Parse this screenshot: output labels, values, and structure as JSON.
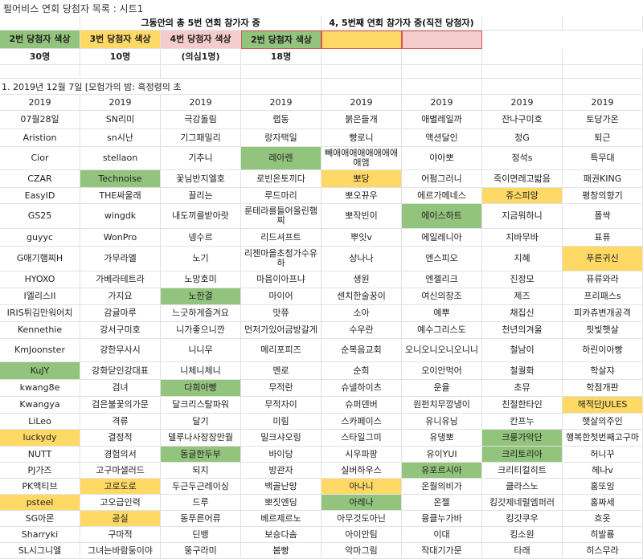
{
  "title": "펄어비스 연회 당첨자 목록 : 시트1",
  "colors": {
    "green": "#93c47d",
    "yellow": "#ffd966",
    "pink": "#f4cccc",
    "border": "#e2e2e2",
    "highlight_border": "#d9534f"
  },
  "header": {
    "left_group_title": "그동안의 총 5번 연회 참가자 중",
    "right_group_title": "4, 5번째 연회 참가자 중(직전 당첨자)",
    "legend": [
      {
        "label": "2번 당첨자 색상",
        "color": "green",
        "count": "30명"
      },
      {
        "label": "3번 당첨자 색상",
        "color": "yellow",
        "count": "10명"
      },
      {
        "label": "4번 당첨자 색상",
        "color": "pink",
        "count": "(의심1명)"
      },
      {
        "label": "2번 당첨자 색상",
        "color": "green",
        "count": "18명"
      },
      {
        "label": "",
        "color": "yellow",
        "count": ""
      },
      {
        "label": "",
        "color": "pink",
        "count": ""
      }
    ]
  },
  "section_title": "1. 2019년 12월 7일 [모험가의 밤: 흑정령의 초",
  "table": {
    "header": [
      "2019",
      "2019",
      "2019",
      "2019",
      "2019",
      "2019",
      "2019",
      "2019"
    ],
    "rows": [
      [
        {
          "t": "07월28일"
        },
        {
          "t": "SN리미"
        },
        {
          "t": "극강돌림"
        },
        {
          "t": "랩동"
        },
        {
          "t": "붉은들개"
        },
        {
          "t": "애별레일까"
        },
        {
          "t": "잔나구미호"
        },
        {
          "t": "토당가온"
        }
      ],
      [
        {
          "t": "Aristion"
        },
        {
          "t": "sn시난"
        },
        {
          "t": "기그패밀리"
        },
        {
          "t": "랑자택일"
        },
        {
          "t": "빵로니"
        },
        {
          "t": "액션달인"
        },
        {
          "t": "정G"
        },
        {
          "t": "퇴근"
        }
      ],
      [
        {
          "t": "Cior"
        },
        {
          "t": "stellaon"
        },
        {
          "t": "기추니"
        },
        {
          "t": "레아렌",
          "c": "green"
        },
        {
          "t": "빼애애애애애애애애애앰"
        },
        {
          "t": "야아뽀"
        },
        {
          "t": "정석s"
        },
        {
          "t": "특무대"
        }
      ],
      [
        {
          "t": "CZAR"
        },
        {
          "t": "Technoise",
          "c": "green"
        },
        {
          "t": "꽃님반지엘호"
        },
        {
          "t": "로빈온토끼다"
        },
        {
          "t": "뽀당",
          "c": "yellow"
        },
        {
          "t": "어펌그러니"
        },
        {
          "t": "죽이면레고밟음"
        },
        {
          "t": "패권KING"
        }
      ],
      [
        {
          "t": "EasyID"
        },
        {
          "t": "THE싸울래"
        },
        {
          "t": "끌리는"
        },
        {
          "t": "루드마리"
        },
        {
          "t": "뽀오뀨우"
        },
        {
          "t": "에르가메네스"
        },
        {
          "t": "쥬스피앙",
          "c": "yellow"
        },
        {
          "t": "평창의향기"
        }
      ],
      [
        {
          "t": "GS25"
        },
        {
          "t": "wingdk"
        },
        {
          "t": "내도끼를받아랏"
        },
        {
          "t": "룬테라를들어올린햄찌"
        },
        {
          "t": "뽀작빈이"
        },
        {
          "t": "에이스하트",
          "c": "green"
        },
        {
          "t": "지금뭐하니"
        },
        {
          "t": "폴싹"
        }
      ],
      [
        {
          "t": "guyyc"
        },
        {
          "t": "WonPro"
        },
        {
          "t": "넹수르"
        },
        {
          "t": "리드셔프트"
        },
        {
          "t": "뿌잇v"
        },
        {
          "t": "에일레니아"
        },
        {
          "t": "지바무바"
        },
        {
          "t": "표퓨"
        }
      ],
      [
        {
          "t": "G애기햄찌H"
        },
        {
          "t": "가무라엘"
        },
        {
          "t": "노기"
        },
        {
          "t": "리젠마을초청가수유하"
        },
        {
          "t": "상나나"
        },
        {
          "t": "엔스피오"
        },
        {
          "t": "지혜"
        },
        {
          "t": "푸른귀신",
          "c": "yellow"
        }
      ],
      [
        {
          "t": "HYOXO"
        },
        {
          "t": "가베라테트라"
        },
        {
          "t": "노망호미"
        },
        {
          "t": "마음이아프냐"
        },
        {
          "t": "생원"
        },
        {
          "t": "엔젤리크"
        },
        {
          "t": "진정모"
        },
        {
          "t": "퓨류와라"
        }
      ],
      [
        {
          "t": "I엘리스II"
        },
        {
          "t": "가지요"
        },
        {
          "t": "노한결",
          "c": "green"
        },
        {
          "t": "마이어"
        },
        {
          "t": "센치한술꿍이"
        },
        {
          "t": "여신의창조"
        },
        {
          "t": "제즈"
        },
        {
          "t": "프리패스s"
        }
      ],
      [
        {
          "t": "IRIS튀김만워어치"
        },
        {
          "t": "감귤마루"
        },
        {
          "t": "느긋하게즐겨요"
        },
        {
          "t": "맛쮸"
        },
        {
          "t": "소아"
        },
        {
          "t": "예뿌"
        },
        {
          "t": "채집신"
        },
        {
          "t": "피카츄변개공격"
        }
      ],
      [
        {
          "t": "Kennethie"
        },
        {
          "t": "강서구미호"
        },
        {
          "t": "니가좋으니깐"
        },
        {
          "t": "먼저가있어금방갈게"
        },
        {
          "t": "수우란"
        },
        {
          "t": "예수그리스도"
        },
        {
          "t": "천년의겨울"
        },
        {
          "t": "핏빛햇살"
        }
      ],
      [
        {
          "t": "KmJoonster"
        },
        {
          "t": "강한무사시"
        },
        {
          "t": "니니무"
        },
        {
          "t": "메리포피즈"
        },
        {
          "t": "순복음교회"
        },
        {
          "t": "오니오니오니오니니"
        },
        {
          "t": "철남이"
        },
        {
          "t": "하린이아빵"
        }
      ],
      [
        {
          "t": "KuJY",
          "c": "green"
        },
        {
          "t": "강화닫인강대표"
        },
        {
          "t": "니체니체니"
        },
        {
          "t": "멘로"
        },
        {
          "t": "순희"
        },
        {
          "t": "오이안먹어"
        },
        {
          "t": "철퀄화"
        },
        {
          "t": "학살쟈"
        }
      ],
      [
        {
          "t": "kwang8e"
        },
        {
          "t": "검녀"
        },
        {
          "t": "다희아빵",
          "c": "green"
        },
        {
          "t": "무적란"
        },
        {
          "t": "슈넬하이츠"
        },
        {
          "t": "운율"
        },
        {
          "t": "초뮤"
        },
        {
          "t": "학점개판"
        }
      ],
      [
        {
          "t": "Kwangya"
        },
        {
          "t": "검은불꽃의가문"
        },
        {
          "t": "달크리스탈파워"
        },
        {
          "t": "무적자이"
        },
        {
          "t": "슈퍼덴버"
        },
        {
          "t": "원펀치무깡냉이"
        },
        {
          "t": "친절한타인"
        },
        {
          "t": "해적단JULES",
          "c": "yellow"
        }
      ],
      [
        {
          "t": "LiLeo"
        },
        {
          "t": "격류"
        },
        {
          "t": "달기"
        },
        {
          "t": "미림"
        },
        {
          "t": "스카페이스"
        },
        {
          "t": "유니유닝"
        },
        {
          "t": "칸프누"
        },
        {
          "t": "햇살의주인"
        }
      ],
      [
        {
          "t": "luckydy",
          "c": "yellow"
        },
        {
          "t": "결정적"
        },
        {
          "t": "델루나사장장만월"
        },
        {
          "t": "밀크샤오링"
        },
        {
          "t": "스타일그미"
        },
        {
          "t": "유댕뽀"
        },
        {
          "t": "크룽가악단",
          "c": "green"
        },
        {
          "t": "행복한첫번째고구마"
        }
      ],
      [
        {
          "t": "NUTT"
        },
        {
          "t": "경험의서"
        },
        {
          "t": "동글한두부",
          "c": "green"
        },
        {
          "t": "바이당"
        },
        {
          "t": "시우파팡"
        },
        {
          "t": "유이YUI"
        },
        {
          "t": "크리토리아",
          "c": "green"
        },
        {
          "t": "허니꾸"
        }
      ],
      [
        {
          "t": "PJ가즈"
        },
        {
          "t": "고구마샐러드"
        },
        {
          "t": "되지"
        },
        {
          "t": "방관자"
        },
        {
          "t": "실버하우스"
        },
        {
          "t": "유포르시아",
          "c": "green"
        },
        {
          "t": "크리티컬히트"
        },
        {
          "t": "헤나v"
        }
      ],
      [
        {
          "t": "PK액티브"
        },
        {
          "t": "고로도로",
          "c": "yellow"
        },
        {
          "t": "두근두근레이싱"
        },
        {
          "t": "백골난망"
        },
        {
          "t": "아나니",
          "c": "yellow"
        },
        {
          "t": "온월의비가"
        },
        {
          "t": "클라스노"
        },
        {
          "t": "홍또잉"
        }
      ],
      [
        {
          "t": "psteel",
          "c": "yellow"
        },
        {
          "t": "고오급인력"
        },
        {
          "t": "드루"
        },
        {
          "t": "뽀짓엔딩"
        },
        {
          "t": "아레나",
          "c": "green"
        },
        {
          "t": "온젤"
        },
        {
          "t": "킹갓제네럴엠퍼러"
        },
        {
          "t": "홍짜세"
        }
      ],
      [
        {
          "t": "SG아몬"
        },
        {
          "t": "공실",
          "c": "yellow"
        },
        {
          "t": "동푸른어류"
        },
        {
          "t": "베르제르노"
        },
        {
          "t": "아무것도아닌"
        },
        {
          "t": "융클누가바"
        },
        {
          "t": "킹갓쿠우"
        },
        {
          "t": "흐옷"
        }
      ],
      [
        {
          "t": "Sharryki"
        },
        {
          "t": "구마적"
        },
        {
          "t": "딘뱅"
        },
        {
          "t": "보승다솜"
        },
        {
          "t": "아이안팀"
        },
        {
          "t": "이대"
        },
        {
          "t": "킹소원"
        },
        {
          "t": "히발룡"
        }
      ],
      [
        {
          "t": "SL시그니엘"
        },
        {
          "t": "그녀는바람둥이야"
        },
        {
          "t": "뚱구라미"
        },
        {
          "t": "봄빵"
        },
        {
          "t": "악마그림"
        },
        {
          "t": "작대기가문"
        },
        {
          "t": "타래"
        },
        {
          "t": "히스무라"
        }
      ]
    ]
  }
}
